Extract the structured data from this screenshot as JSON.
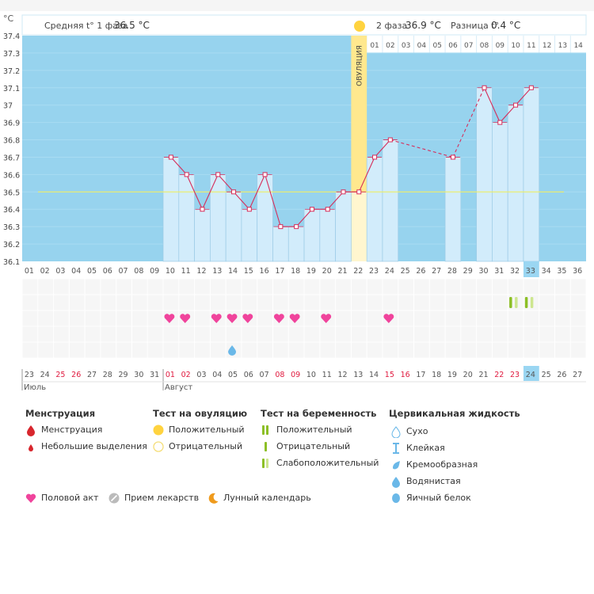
{
  "header": {
    "unit": "°C",
    "phase1_label": "Средняя t° 1 фаза",
    "phase1_value": "36.5 °C",
    "phase2_label": "2 фаза",
    "phase2_value": "36.9 °C",
    "diff_label": "Разница t°",
    "diff_value": "0.4 °C",
    "ovulation_label": "ОВУЛЯЦИЯ"
  },
  "phase2_day_labels": [
    "01",
    "02",
    "03",
    "04",
    "05",
    "06",
    "07",
    "08",
    "09",
    "10",
    "11",
    "12",
    "13",
    "14"
  ],
  "cycle_days": [
    "01",
    "02",
    "03",
    "04",
    "05",
    "06",
    "07",
    "08",
    "09",
    "10",
    "11",
    "12",
    "13",
    "14",
    "15",
    "16",
    "17",
    "18",
    "19",
    "20",
    "21",
    "22",
    "23",
    "24",
    "25",
    "26",
    "27",
    "28",
    "29",
    "30",
    "31",
    "32",
    "33",
    "34",
    "35",
    "36"
  ],
  "current_cycle_day": "33",
  "dates": [
    "23",
    "24",
    "25",
    "26",
    "27",
    "28",
    "29",
    "30",
    "31",
    "01",
    "02",
    "03",
    "04",
    "05",
    "06",
    "07",
    "08",
    "09",
    "10",
    "11",
    "12",
    "13",
    "14",
    "15",
    "16",
    "17",
    "18",
    "19",
    "20",
    "21",
    "22",
    "23",
    "24",
    "25",
    "26",
    "27"
  ],
  "weekend_date_indices": [
    2,
    3,
    9,
    10,
    16,
    17,
    23,
    24,
    30,
    31
  ],
  "today_date_index": 32,
  "months": [
    {
      "name": "Июль",
      "start_index": 0
    },
    {
      "name": "Август",
      "start_index": 9
    }
  ],
  "chart_data": {
    "type": "bar",
    "title": "",
    "ylabel": "°C",
    "ylim": [
      36.1,
      37.4
    ],
    "yticks": [
      "37.4",
      "37.3",
      "37.2",
      "37.1",
      "37",
      "36.9",
      "36.8",
      "36.7",
      "36.6",
      "36.5",
      "36.4",
      "36.3",
      "36.2",
      "36.1"
    ],
    "coverline": 36.5,
    "ovulation_day": 22,
    "series": [
      {
        "name": "Базальная температура",
        "points": [
          {
            "day": 10,
            "value": 36.7
          },
          {
            "day": 11,
            "value": 36.6
          },
          {
            "day": 12,
            "value": 36.4
          },
          {
            "day": 13,
            "value": 36.6
          },
          {
            "day": 14,
            "value": 36.5
          },
          {
            "day": 15,
            "value": 36.4
          },
          {
            "day": 16,
            "value": 36.6
          },
          {
            "day": 17,
            "value": 36.3
          },
          {
            "day": 18,
            "value": 36.3
          },
          {
            "day": 19,
            "value": 36.4
          },
          {
            "day": 20,
            "value": 36.4
          },
          {
            "day": 21,
            "value": 36.5
          },
          {
            "day": 22,
            "value": 36.5
          },
          {
            "day": 23,
            "value": 36.7
          },
          {
            "day": 24,
            "value": 36.8
          },
          {
            "day": 28,
            "value": 36.7
          },
          {
            "day": 30,
            "value": 37.1
          },
          {
            "day": 31,
            "value": 36.9
          },
          {
            "day": 32,
            "value": 37.0
          },
          {
            "day": 33,
            "value": 37.1
          }
        ]
      }
    ],
    "intercourse_days": [
      10,
      11,
      13,
      14,
      15,
      17,
      18,
      20,
      24
    ],
    "fluid_watery_days": [
      14
    ],
    "pregnancy_tests": [
      {
        "day": 32,
        "result": "positive"
      },
      {
        "day": 32,
        "result": "weak"
      },
      {
        "day": 33,
        "result": "positive"
      },
      {
        "day": 33,
        "result": "weak"
      }
    ]
  },
  "legend": {
    "menstruation": {
      "title": "Менструация",
      "items": [
        "Менструация",
        "Небольшие выделения"
      ]
    },
    "ovulation_test": {
      "title": "Тест на овуляцию",
      "items": [
        "Положительный",
        "Отрицательный"
      ]
    },
    "pregnancy_test": {
      "title": "Тест на беременность",
      "items": [
        "Положительный",
        "Отрицательный",
        "Слабоположительный"
      ]
    },
    "cervical_fluid": {
      "title": "Цервикальная жидкость",
      "items": [
        "Сухо",
        "Клейкая",
        "Кремообразная",
        "Водянистая",
        "Яичный белок"
      ]
    },
    "other": [
      "Половой акт",
      "Прием лекарств",
      "Лунный календарь"
    ]
  },
  "colors": {
    "bg_blue": "#97d3ee",
    "bar_fill": "#d2ecfb",
    "bar_stroke": "#9ccbe6",
    "line": "#d62d5a",
    "ovulation_band": "#ffe88e",
    "ovulation_light": "#fff6cf",
    "coverline": "#eeee66",
    "heart": "#f0449c",
    "red": "#d8262d",
    "green": "#8cbf26",
    "light_green": "#cde68f",
    "water": "#6ab8e8",
    "today": "#9ad6f2",
    "sun": "#ffd33f",
    "moon": "#ef9a1c",
    "grey": "#bbbbbb"
  }
}
